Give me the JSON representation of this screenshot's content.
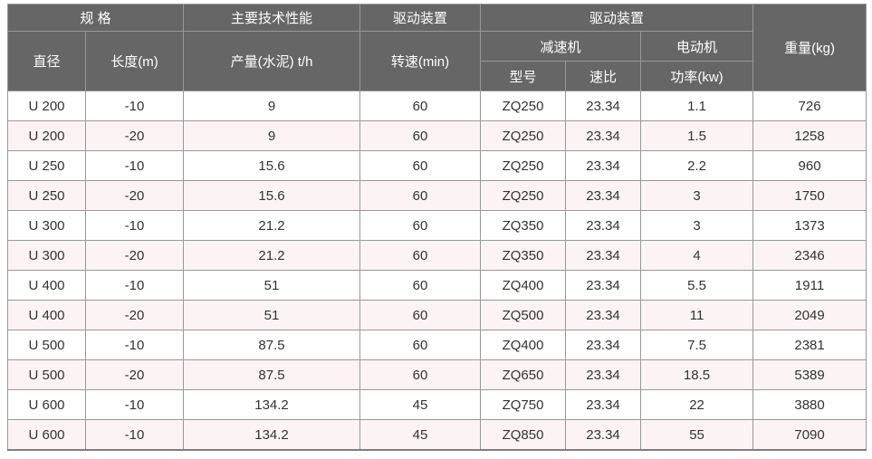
{
  "table": {
    "header": {
      "spec_group": "规 格",
      "performance_group": "主要技术性能",
      "drive_group_1": "驱动装置",
      "drive_group_2": "驱动装置",
      "weight": "重量(kg)",
      "diameter": "直径",
      "length": "长度(m)",
      "output": "产量(水泥) t/h",
      "speed": "转速(min)",
      "reducer": "减速机",
      "motor": "电动机",
      "model": "型号",
      "ratio": "速比",
      "power": "功率(kw)"
    },
    "rows": [
      [
        "U 200",
        "-10",
        "9",
        "60",
        "ZQ250",
        "23.34",
        "1.1",
        "726"
      ],
      [
        "U 200",
        "-20",
        "9",
        "60",
        "ZQ250",
        "23.34",
        "1.5",
        "1258"
      ],
      [
        "U 250",
        "-10",
        "15.6",
        "60",
        "ZQ250",
        "23.34",
        "2.2",
        "960"
      ],
      [
        "U 250",
        "-20",
        "15.6",
        "60",
        "ZQ250",
        "23.34",
        "3",
        "1750"
      ],
      [
        "U 300",
        "-10",
        "21.2",
        "60",
        "ZQ350",
        "23.34",
        "3",
        "1373"
      ],
      [
        "U 300",
        "-20",
        "21.2",
        "60",
        "ZQ350",
        "23.34",
        "4",
        "2346"
      ],
      [
        "U 400",
        "-10",
        "51",
        "60",
        "ZQ400",
        "23.34",
        "5.5",
        "1911"
      ],
      [
        "U 400",
        "-20",
        "51",
        "60",
        "ZQ500",
        "23.34",
        "11",
        "2049"
      ],
      [
        "U 500",
        "-10",
        "87.5",
        "60",
        "ZQ400",
        "23.34",
        "7.5",
        "2381"
      ],
      [
        "U 500",
        "-20",
        "87.5",
        "60",
        "ZQ650",
        "23.34",
        "18.5",
        "5389"
      ],
      [
        "U 600",
        "-10",
        "134.2",
        "45",
        "ZQ750",
        "23.34",
        "22",
        "3880"
      ],
      [
        "U 600",
        "-10",
        "134.2",
        "45",
        "ZQ850",
        "23.34",
        "55",
        "7090"
      ]
    ]
  },
  "colors": {
    "header_bg": "#666666",
    "header_text": "#ffffff",
    "header_border": "#999999",
    "cell_border": "#999999",
    "cell_text": "#333333",
    "row_bg": "#ffffff",
    "row_alt_bg": "#fcf4f4",
    "bottom_border": "#7f7f7f"
  }
}
